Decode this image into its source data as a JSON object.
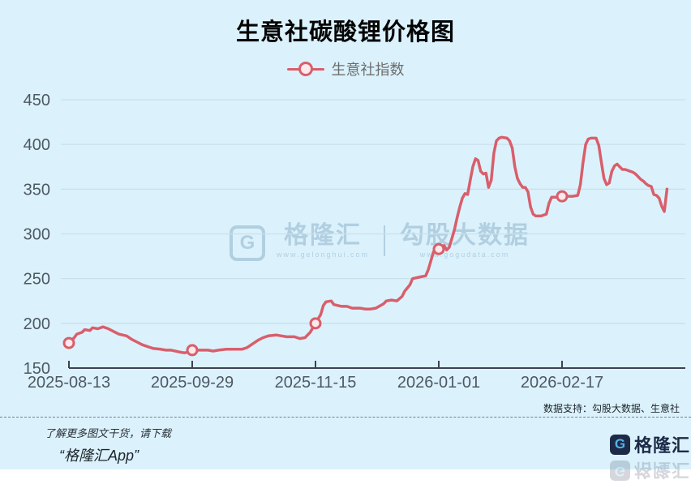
{
  "header": {
    "title": "生意社碳酸锂价格图"
  },
  "legend": {
    "label": "生意社指数",
    "marker_icon": "open-circle-on-line"
  },
  "watermark": {
    "logo_letter": "G",
    "brand": "格隆汇",
    "brand_url": "www.gelonghui.com",
    "partner": "勾股大数据",
    "partner_url": "www.gogudata.com"
  },
  "footer": {
    "support": "数据支持：勾股大数据、生意社",
    "promo_line1": "了解更多图文干货，请下载",
    "promo_line2": "“格隆汇App”",
    "logo_letter": "G",
    "brand": "格隆汇"
  },
  "colors": {
    "background": "#dbf2fc",
    "line": "#d95e6b",
    "marker_fill": "#fbe9ec",
    "grid": "#c9e0ea",
    "axis": "#3d4350",
    "tick_label": "#4e5862",
    "navy": "#1c2a47",
    "logo_blue": "#55b3e6"
  },
  "chart_data": {
    "type": "line",
    "title": "生意社碳酸锂价格图",
    "xlabel": "",
    "ylabel": "",
    "ylim": [
      150,
      450
    ],
    "y_ticks": [
      150,
      200,
      250,
      300,
      350,
      400,
      450
    ],
    "xlim_days": [
      0,
      235
    ],
    "grid": true,
    "legend_position": "top",
    "x_ticks": [
      {
        "day": 0,
        "label": "2025-08-13"
      },
      {
        "day": 47,
        "label": "2025-09-29"
      },
      {
        "day": 94,
        "label": "2025-11-15"
      },
      {
        "day": 141,
        "label": "2026-01-01"
      },
      {
        "day": 188,
        "label": "2026-02-17"
      }
    ],
    "series": [
      {
        "name": "生意社指数",
        "marker_days": [
          0,
          47,
          94,
          141,
          188
        ],
        "points": [
          [
            0,
            178
          ],
          [
            2,
            184
          ],
          [
            3,
            188
          ],
          [
            5,
            190
          ],
          [
            6,
            193
          ],
          [
            8,
            192
          ],
          [
            9,
            195
          ],
          [
            11,
            194
          ],
          [
            13,
            196
          ],
          [
            15,
            194
          ],
          [
            17,
            191
          ],
          [
            19,
            188
          ],
          [
            22,
            186
          ],
          [
            24,
            182
          ],
          [
            26,
            179
          ],
          [
            28,
            176
          ],
          [
            30,
            174
          ],
          [
            32,
            172
          ],
          [
            35,
            171
          ],
          [
            37,
            170
          ],
          [
            39,
            170
          ],
          [
            42,
            168
          ],
          [
            44,
            167
          ],
          [
            46,
            168
          ],
          [
            47,
            170
          ],
          [
            50,
            170
          ],
          [
            53,
            170
          ],
          [
            55,
            169
          ],
          [
            57,
            170
          ],
          [
            60,
            171
          ],
          [
            63,
            171
          ],
          [
            66,
            171
          ],
          [
            68,
            173
          ],
          [
            70,
            177
          ],
          [
            72,
            181
          ],
          [
            74,
            184
          ],
          [
            76,
            186
          ],
          [
            79,
            187
          ],
          [
            81,
            186
          ],
          [
            83,
            185
          ],
          [
            86,
            185
          ],
          [
            88,
            183
          ],
          [
            90,
            184
          ],
          [
            92,
            190
          ],
          [
            94,
            200
          ],
          [
            96,
            210
          ],
          [
            97,
            220
          ],
          [
            98,
            224
          ],
          [
            100,
            225
          ],
          [
            101,
            221
          ],
          [
            104,
            219
          ],
          [
            106,
            219
          ],
          [
            108,
            217
          ],
          [
            111,
            217
          ],
          [
            113,
            216
          ],
          [
            115,
            216
          ],
          [
            117,
            217
          ],
          [
            120,
            222
          ],
          [
            121,
            225
          ],
          [
            123,
            226
          ],
          [
            125,
            225
          ],
          [
            127,
            230
          ],
          [
            128,
            236
          ],
          [
            130,
            243
          ],
          [
            131,
            250
          ],
          [
            134,
            252
          ],
          [
            136,
            253
          ],
          [
            137,
            260
          ],
          [
            138,
            270
          ],
          [
            139,
            280
          ],
          [
            140,
            285
          ],
          [
            141,
            283
          ],
          [
            143,
            287
          ],
          [
            144,
            282
          ],
          [
            145,
            285
          ],
          [
            146,
            295
          ],
          [
            147,
            305
          ],
          [
            148,
            318
          ],
          [
            149,
            330
          ],
          [
            150,
            340
          ],
          [
            151,
            345
          ],
          [
            152,
            344
          ],
          [
            153,
            360
          ],
          [
            154,
            375
          ],
          [
            155,
            384
          ],
          [
            156,
            382
          ],
          [
            157,
            370
          ],
          [
            158,
            367
          ],
          [
            159,
            368
          ],
          [
            160,
            352
          ],
          [
            161,
            360
          ],
          [
            162,
            390
          ],
          [
            163,
            404
          ],
          [
            164,
            407
          ],
          [
            165,
            408
          ],
          [
            167,
            407
          ],
          [
            168,
            404
          ],
          [
            169,
            396
          ],
          [
            170,
            375
          ],
          [
            171,
            362
          ],
          [
            172,
            356
          ],
          [
            173,
            352
          ],
          [
            174,
            352
          ],
          [
            175,
            347
          ],
          [
            176,
            330
          ],
          [
            177,
            322
          ],
          [
            178,
            320
          ],
          [
            180,
            320
          ],
          [
            182,
            322
          ],
          [
            183,
            334
          ],
          [
            184,
            341
          ],
          [
            186,
            341
          ],
          [
            188,
            342
          ],
          [
            190,
            342
          ],
          [
            192,
            342
          ],
          [
            194,
            343
          ],
          [
            195,
            355
          ],
          [
            196,
            380
          ],
          [
            197,
            400
          ],
          [
            198,
            406
          ],
          [
            199,
            407
          ],
          [
            200,
            407
          ],
          [
            201,
            407
          ],
          [
            202,
            399
          ],
          [
            203,
            380
          ],
          [
            204,
            362
          ],
          [
            205,
            355
          ],
          [
            206,
            357
          ],
          [
            207,
            370
          ],
          [
            208,
            376
          ],
          [
            209,
            378
          ],
          [
            210,
            375
          ],
          [
            211,
            372
          ],
          [
            212,
            372
          ],
          [
            213,
            371
          ],
          [
            214,
            370
          ],
          [
            215,
            369
          ],
          [
            216,
            367
          ],
          [
            217,
            364
          ],
          [
            218,
            361
          ],
          [
            219,
            359
          ],
          [
            220,
            356
          ],
          [
            221,
            354
          ],
          [
            222,
            353
          ],
          [
            223,
            344
          ],
          [
            224,
            343
          ],
          [
            225,
            340
          ],
          [
            226,
            331
          ],
          [
            227,
            325
          ],
          [
            228,
            350
          ]
        ]
      }
    ]
  }
}
